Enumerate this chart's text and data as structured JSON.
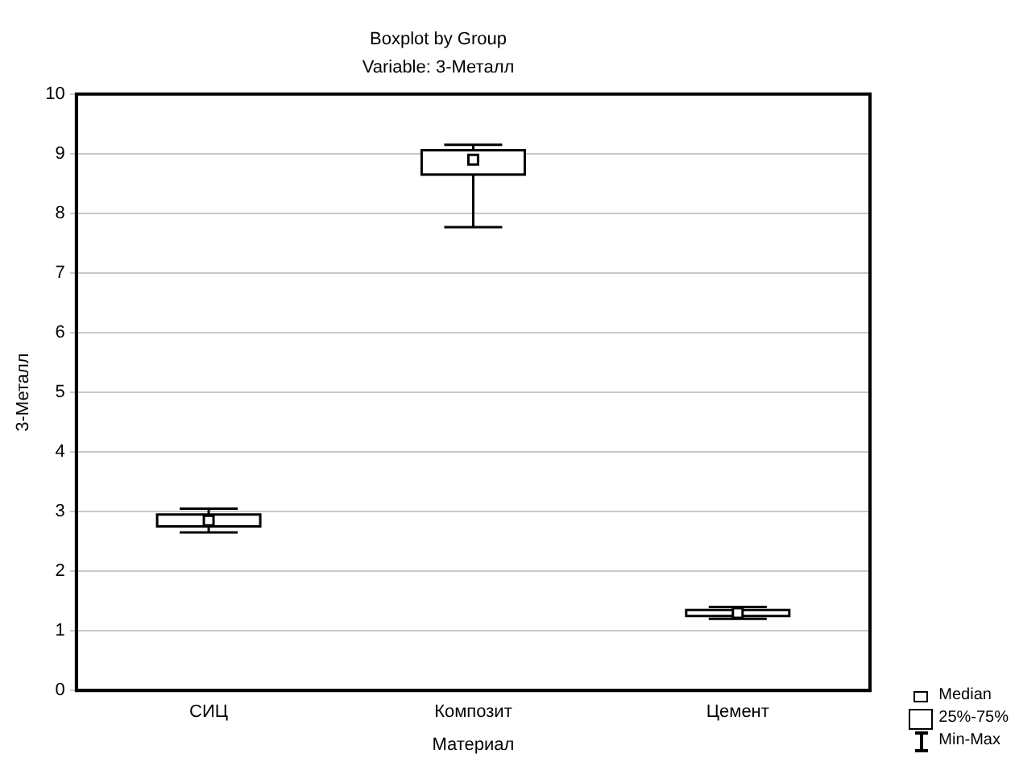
{
  "chart_data": {
    "type": "box",
    "title": "Boxplot by Group",
    "subtitle": "Variable: 3-Металл",
    "xlabel": "Материал",
    "ylabel": "3-Металл",
    "categories": [
      "СИЦ",
      "Композит",
      "Цемент"
    ],
    "boxes": [
      {
        "low": 2.65,
        "q1": 2.75,
        "median": 2.85,
        "q3": 2.95,
        "high": 3.05
      },
      {
        "low": 7.77,
        "q1": 8.65,
        "median": 8.9,
        "q3": 9.06,
        "high": 9.15
      },
      {
        "low": 1.2,
        "q1": 1.25,
        "median": 1.3,
        "q3": 1.35,
        "high": 1.4
      }
    ],
    "ylim": [
      0,
      10
    ],
    "yticks": [
      0,
      1,
      2,
      3,
      4,
      5,
      6,
      7,
      8,
      9,
      10
    ],
    "grid": "y",
    "annotations": [
      "Median",
      "25%-75%",
      "Min-Max"
    ]
  }
}
